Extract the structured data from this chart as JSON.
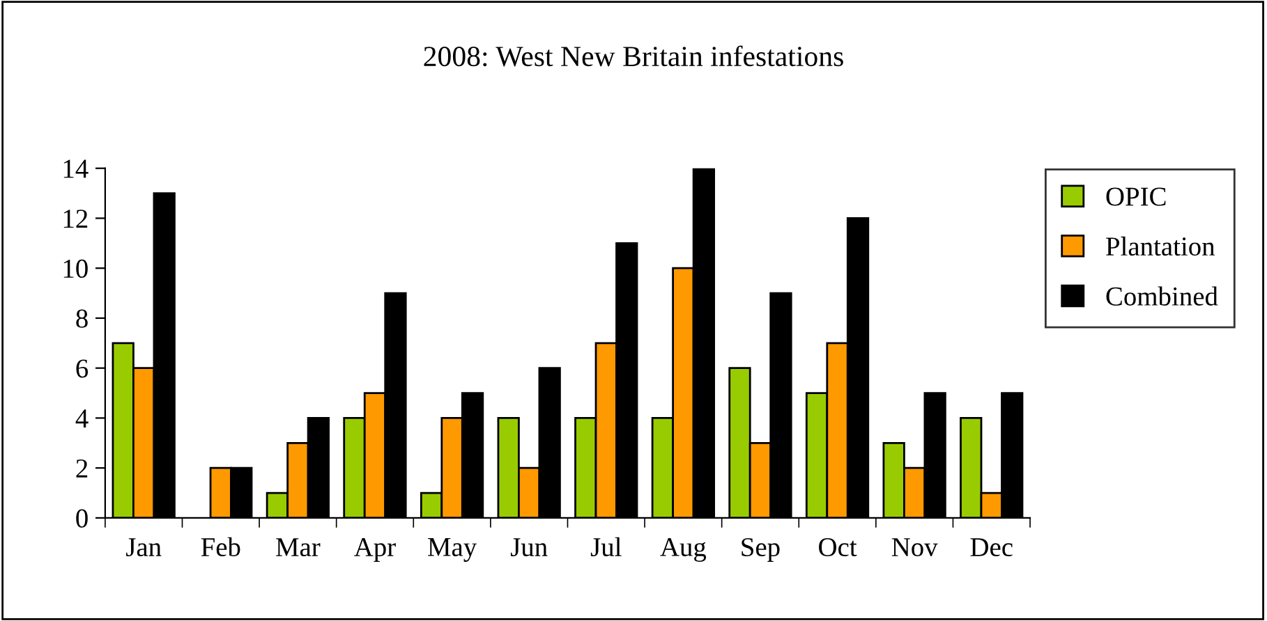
{
  "chart_data": {
    "type": "bar",
    "title": "2008: West New Britain infestations",
    "categories": [
      "Jan",
      "Feb",
      "Mar",
      "Apr",
      "May",
      "Jun",
      "Jul",
      "Aug",
      "Sep",
      "Oct",
      "Nov",
      "Dec"
    ],
    "series": [
      {
        "name": "OPIC",
        "color": "#99cc00",
        "values": [
          7,
          null,
          1,
          4,
          1,
          4,
          4,
          4,
          6,
          5,
          3,
          4
        ]
      },
      {
        "name": "Plantation",
        "color": "#ff9900",
        "values": [
          6,
          2,
          3,
          5,
          4,
          2,
          7,
          10,
          3,
          7,
          2,
          1
        ]
      },
      {
        "name": "Combined",
        "color": "#000000",
        "values": [
          13,
          2,
          4,
          9,
          5,
          6,
          11,
          14,
          9,
          12,
          5,
          5
        ]
      }
    ],
    "ylim": [
      0,
      14
    ],
    "yticks": [
      0,
      2,
      4,
      6,
      8,
      10,
      12,
      14
    ],
    "grid": false,
    "legend": "right"
  }
}
